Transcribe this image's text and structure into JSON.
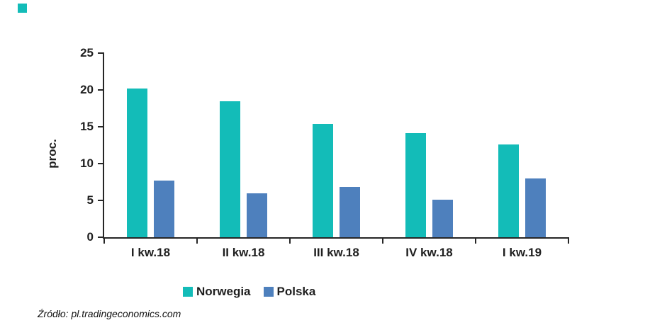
{
  "page": {
    "source_text": "Źródło: pl.tradingeconomics.com"
  },
  "colors": {
    "norwegia": "#13bcb8",
    "polska": "#4e80bd",
    "axis": "#262626",
    "bullet": "#13bcb8"
  },
  "chart_data": {
    "type": "bar",
    "title": "",
    "categories": [
      "I kw.18",
      "II kw.18",
      "III kw.18",
      "IV kw.18",
      "I kw.19"
    ],
    "series": [
      {
        "name": "Norwegia",
        "color": "#13bcb8",
        "values": [
          20.2,
          18.5,
          15.4,
          14.1,
          12.6
        ]
      },
      {
        "name": "Polska",
        "color": "#4e80bd",
        "values": [
          7.7,
          6.0,
          6.8,
          5.1,
          8.0
        ]
      }
    ],
    "xlabel": "",
    "ylabel": "proc.",
    "y_ticks": [
      0,
      5,
      10,
      15,
      20,
      25
    ],
    "ylim": [
      0,
      25
    ],
    "grid": false,
    "legend_position": "bottom"
  }
}
